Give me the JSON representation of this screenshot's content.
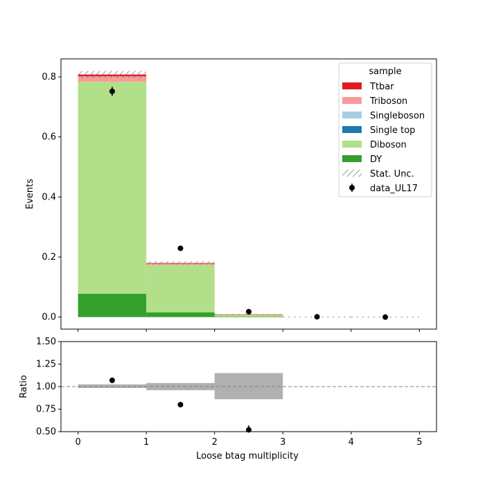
{
  "chart_data": {
    "type": "bar",
    "stacked": true,
    "xlabel": "Loose btag multiplicity",
    "ylabel_main": "Events",
    "ylabel_ratio": "Ratio",
    "bins": [
      [
        0,
        1
      ],
      [
        1,
        2
      ],
      [
        2,
        3
      ],
      [
        3,
        4
      ],
      [
        4,
        5
      ]
    ],
    "xlim": [
      -0.25,
      5.25
    ],
    "xticks": [
      "0",
      "1",
      "2",
      "3",
      "4",
      "5"
    ],
    "main_ylim": [
      -0.04,
      0.86
    ],
    "main_yticks": [
      "0.0",
      "0.2",
      "0.4",
      "0.6",
      "0.8"
    ],
    "ratio_ylim": [
      0.5,
      1.5
    ],
    "ratio_yticks": [
      "0.50",
      "0.75",
      "1.00",
      "1.25",
      "1.50"
    ],
    "legend": {
      "title": "sample",
      "position": "top-right"
    },
    "series": [
      {
        "name": "DY",
        "color": "#33a02c",
        "values": [
          0.078,
          0.016,
          0.002,
          0.0,
          0.0
        ]
      },
      {
        "name": "Diboson",
        "color": "#b2df8a",
        "values": [
          0.706,
          0.158,
          0.006,
          0.0,
          0.0
        ]
      },
      {
        "name": "Single top",
        "color": "#1f78b4",
        "values": [
          0.0,
          0.0,
          0.0,
          0.0,
          0.0
        ]
      },
      {
        "name": "Singleboson",
        "color": "#a6cee3",
        "values": [
          0.0,
          0.0,
          0.0,
          0.0,
          0.0
        ]
      },
      {
        "name": "Triboson",
        "color": "#fb9a99",
        "values": [
          0.018,
          0.004,
          0.0005,
          0.0,
          0.0
        ]
      },
      {
        "name": "Ttbar",
        "color": "#e31a1c",
        "values": [
          0.006,
          0.002,
          0.0005,
          0.0,
          0.0
        ]
      }
    ],
    "legend_order": [
      "Ttbar",
      "Triboson",
      "Singleboson",
      "Single top",
      "Diboson",
      "DY"
    ],
    "stat_unc": {
      "name": "Stat. Unc.",
      "color": "#808080",
      "errors": [
        0.012,
        0.006,
        0.0015,
        0.0,
        0.0
      ]
    },
    "data": {
      "name": "data_UL17",
      "x": [
        0.5,
        1.5,
        2.5,
        3.5,
        4.5
      ],
      "y": [
        0.752,
        0.229,
        0.018,
        0.001,
        0.0
      ],
      "err": [
        0.015,
        0.005,
        0.002,
        0.0005,
        0.0
      ]
    },
    "ratio": {
      "x": [
        0.5,
        1.5,
        2.5
      ],
      "y": [
        1.07,
        0.8,
        0.52
      ],
      "err": [
        0.0,
        0.0,
        0.05
      ],
      "band": [
        [
          0.985,
          1.025
        ],
        [
          0.96,
          1.04
        ],
        [
          0.86,
          1.15
        ]
      ],
      "band_color": "#b0b0b0",
      "reference": 1.0
    }
  }
}
